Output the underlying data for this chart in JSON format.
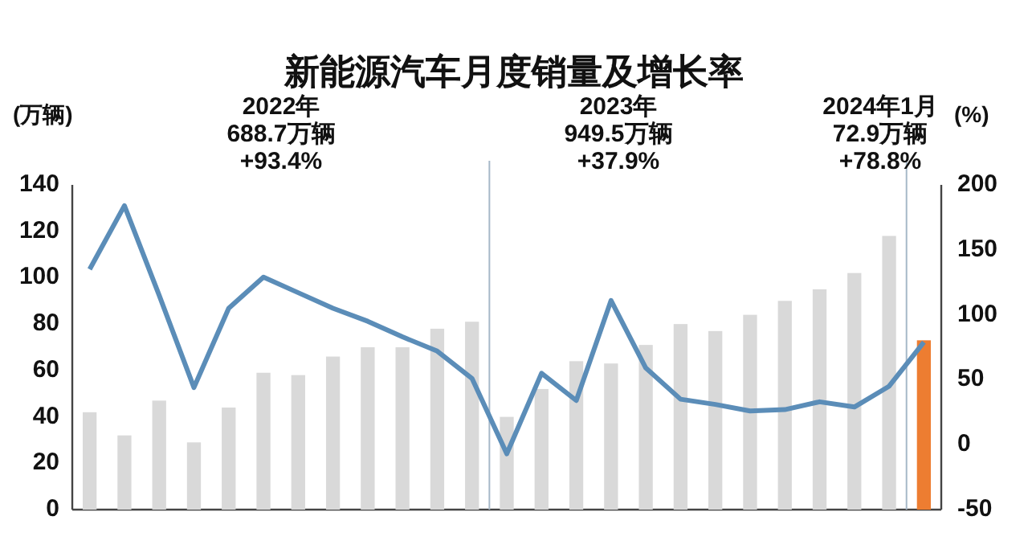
{
  "chart_data": {
    "type": "bar",
    "title": "新能源汽车月度销量及增长率",
    "ylabel": "(万辆)",
    "y2label": "(%)",
    "categories": [
      null,
      null,
      null,
      null,
      null,
      null,
      null,
      null,
      null,
      null,
      null,
      null,
      null,
      null,
      null,
      null,
      null,
      null,
      null,
      null,
      null,
      null,
      null,
      null,
      null
    ],
    "series": [
      {
        "colors": [
          "#d9d9d9",
          "#d9d9d9",
          "#d9d9d9",
          "#d9d9d9",
          "#d9d9d9",
          "#d9d9d9",
          "#d9d9d9",
          "#d9d9d9",
          "#d9d9d9",
          "#d9d9d9",
          "#d9d9d9",
          "#d9d9d9",
          "#d9d9d9",
          "#d9d9d9",
          "#d9d9d9",
          "#d9d9d9",
          "#d9d9d9",
          "#d9d9d9",
          "#d9d9d9",
          "#d9d9d9",
          "#d9d9d9",
          "#d9d9d9",
          "#d9d9d9",
          "#d9d9d9",
          "#ed7d31"
        ],
        "values": [
          42,
          32,
          47,
          29,
          44,
          59,
          58,
          66,
          70,
          70,
          78,
          81,
          40,
          52,
          64,
          63,
          71,
          80,
          77,
          84,
          90,
          95,
          102,
          118,
          73
        ]
      },
      {
        "type": "line",
        "axis": "y2",
        "color": "#5b8db8",
        "values": [
          135,
          184,
          115,
          44,
          105,
          129,
          117,
          105,
          95,
          83,
          72,
          51,
          -7,
          55,
          34,
          111,
          59,
          35,
          31,
          26,
          27,
          33,
          29,
          45,
          79
        ]
      }
    ],
    "ylim": [
      0,
      140
    ],
    "yticks": [
      0,
      20,
      40,
      60,
      80,
      100,
      120,
      140
    ],
    "y2lim": [
      -50,
      200
    ],
    "y2ticks": [
      -50,
      0,
      50,
      100,
      150,
      200
    ],
    "annotations": [
      "2022年\n688.7万辆\n+93.4%",
      "2023年\n949.5万辆\n+37.9%",
      "2024年1月\n72.9万辆\n+78.8%"
    ],
    "grid": false,
    "marker": "none",
    "line_style": "solid"
  }
}
